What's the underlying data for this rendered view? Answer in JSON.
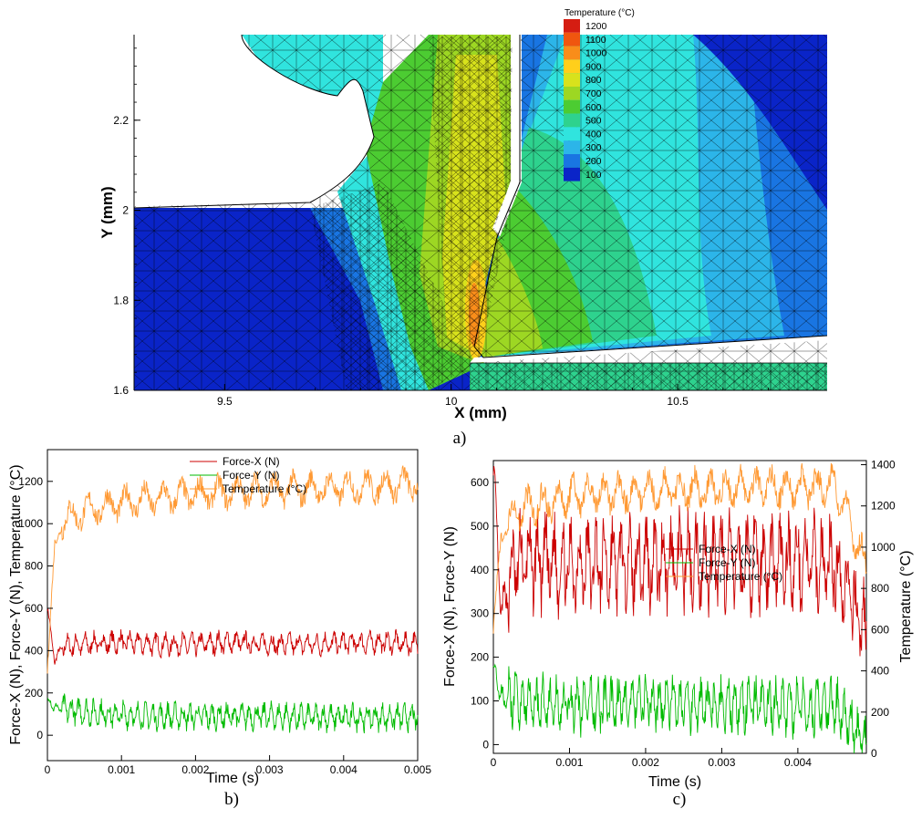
{
  "panels": {
    "a": "a)",
    "b": "b)",
    "c": "c)"
  },
  "chart_data": [
    {
      "id": "a",
      "type": "heatmap",
      "title": "",
      "xlabel": "X (mm)",
      "ylabel": "Y (mm)",
      "xlim": [
        9.3,
        10.83
      ],
      "ylim": [
        1.6,
        2.39
      ],
      "xticks": [
        "9.5",
        "10",
        "10.5"
      ],
      "yticks": [
        "1.6",
        "1.8",
        "2",
        "2.2"
      ],
      "xtick_values": [
        9.5,
        10,
        10.5
      ],
      "ytick_values": [
        1.6,
        1.8,
        2.0,
        2.2
      ],
      "legend": {
        "title": "Temperature (°C)",
        "placement": "top-right",
        "levels": [
          "1200",
          "1100",
          "1000",
          "900",
          "800",
          "700",
          "600",
          "500",
          "400",
          "300",
          "200",
          "100"
        ],
        "colors": [
          "#d51d12",
          "#f0560f",
          "#f98d1a",
          "#ffcf1b",
          "#d8e21c",
          "#9dd723",
          "#4ccc32",
          "#2ed28e",
          "#30e4de",
          "#2cb5e9",
          "#1975e2",
          "#0a24c8"
        ]
      }
    },
    {
      "id": "b",
      "type": "line",
      "xlabel": "Time (s)",
      "ylabel": "Force-X (N), Force-Y (N), Temperature (°C)",
      "xlim": [
        0,
        0.005
      ],
      "ylim": [
        -120,
        1350
      ],
      "xticks": [
        "0",
        "0.001",
        "0.002",
        "0.003",
        "0.004",
        "0.005"
      ],
      "yticks": [
        "0",
        "200",
        "400",
        "600",
        "800",
        "1000",
        "1200"
      ],
      "legend_placement": "top-center",
      "series": [
        {
          "name": "Force-X (N)",
          "color": "#cc0000",
          "x": [
            0,
            0.0001,
            0.0002,
            0.0005,
            0.001,
            0.0015,
            0.002,
            0.0025,
            0.003,
            0.0035,
            0.004,
            0.0045,
            0.005
          ],
          "y": [
            600,
            350,
            420,
            430,
            440,
            430,
            430,
            440,
            430,
            430,
            435,
            440,
            430
          ]
        },
        {
          "name": "Force-Y (N)",
          "color": "#00bb00",
          "x": [
            0,
            0.0001,
            0.0005,
            0.001,
            0.0015,
            0.002,
            0.0025,
            0.003,
            0.0035,
            0.004,
            0.0045,
            0.005
          ],
          "y": [
            170,
            130,
            110,
            95,
            90,
            90,
            90,
            90,
            85,
            85,
            85,
            85
          ]
        },
        {
          "name": "Temperature (°C)",
          "color": "#ff9933",
          "x": [
            0,
            0.0001,
            0.0002,
            0.0005,
            0.001,
            0.0015,
            0.002,
            0.0025,
            0.003,
            0.0035,
            0.004,
            0.0045,
            0.005
          ],
          "y": [
            300,
            900,
            1010,
            1060,
            1100,
            1120,
            1140,
            1150,
            1160,
            1165,
            1170,
            1180,
            1190
          ]
        }
      ]
    },
    {
      "id": "c",
      "type": "line",
      "xlabel": "Time (s)",
      "ylabel": "Force-X (N), Force-Y (N)",
      "y2label": "Temperature (°C)",
      "xlim": [
        0,
        0.0049
      ],
      "ylim": [
        -20,
        650
      ],
      "y2lim": [
        0,
        1420
      ],
      "xticks": [
        "0",
        "0.001",
        "0.002",
        "0.003",
        "0.004"
      ],
      "yticks": [
        "0",
        "100",
        "200",
        "300",
        "400",
        "500",
        "600"
      ],
      "y2ticks": [
        "0",
        "200",
        "400",
        "600",
        "800",
        "1000",
        "1200",
        "1400"
      ],
      "legend_placement": "center-right",
      "series": [
        {
          "name": "Force-X (N)",
          "color": "#cc0000",
          "axis": "left",
          "x": [
            0,
            0.0001,
            0.0003,
            0.0005,
            0.001,
            0.0015,
            0.002,
            0.0025,
            0.003,
            0.0035,
            0.004,
            0.0045,
            0.0049
          ],
          "y": [
            640,
            300,
            420,
            420,
            410,
            415,
            420,
            420,
            420,
            415,
            420,
            410,
            250
          ]
        },
        {
          "name": "Force-Y (N)",
          "color": "#00bb00",
          "axis": "left",
          "x": [
            0,
            0.0001,
            0.0005,
            0.001,
            0.0015,
            0.002,
            0.0025,
            0.003,
            0.0035,
            0.004,
            0.0045,
            0.0049
          ],
          "y": [
            175,
            110,
            95,
            90,
            90,
            95,
            95,
            90,
            90,
            85,
            85,
            0
          ]
        },
        {
          "name": "Temperature (°C)",
          "color": "#ff9933",
          "axis": "right",
          "x": [
            0,
            0.0001,
            0.0003,
            0.0005,
            0.001,
            0.0015,
            0.002,
            0.0025,
            0.003,
            0.0035,
            0.004,
            0.0045,
            0.0049
          ],
          "y": [
            600,
            1050,
            1180,
            1200,
            1250,
            1260,
            1270,
            1280,
            1280,
            1290,
            1290,
            1300,
            900
          ]
        }
      ]
    }
  ]
}
